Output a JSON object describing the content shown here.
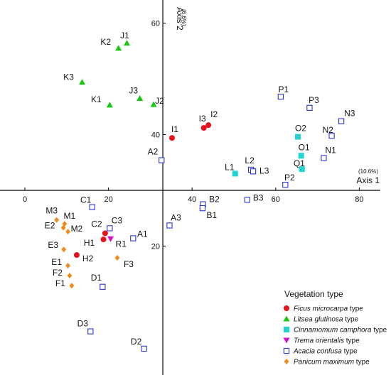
{
  "chart_data": {
    "type": "scatter",
    "title": "",
    "xlabel": "Axis 1",
    "xlabel_pct": "(10.6%)",
    "ylabel": "Axis 2",
    "ylabel_pct": "(6.6%)",
    "xlim": [
      -10,
      85
    ],
    "ylim": [
      -4,
      65
    ],
    "origin": [
      33,
      30
    ],
    "x_ticks": [
      {
        "label": "0",
        "value": 0
      },
      {
        "label": "20",
        "value": 20
      },
      {
        "label": "40",
        "value": 40
      },
      {
        "label": "60",
        "value": 60
      },
      {
        "label": "80",
        "value": 80
      }
    ],
    "y_ticks": [
      {
        "label": "60",
        "value": 60
      },
      {
        "label": "40",
        "value": 40
      },
      {
        "label": "20",
        "value": 20
      }
    ],
    "legend_position": "bottom-right",
    "legend_title": "Vegetation type",
    "series": [
      {
        "key": "ficus",
        "name_italic": "Ficus microcarpa",
        "name_suffix": " type",
        "color": "#e8101b",
        "marker": "circle",
        "points": [
          {
            "label": "I1",
            "x": 35.2,
            "y": 39.4
          },
          {
            "label": "I3",
            "x": 42.8,
            "y": 41.2
          },
          {
            "label": "I2",
            "x": 43.9,
            "y": 41.7
          },
          {
            "label": "C2",
            "x": 19.2,
            "y": 22.3
          },
          {
            "label": "H1",
            "x": 18.8,
            "y": 21.2
          },
          {
            "label": "H2",
            "x": 12.4,
            "y": 18.4
          }
        ]
      },
      {
        "key": "litsea",
        "name_italic": "Litsea glutinosa",
        "name_suffix": " type",
        "color": "#16c80f",
        "marker": "triangle",
        "points": [
          {
            "label": "K2",
            "x": 22.4,
            "y": 55.5
          },
          {
            "label": "J1",
            "x": 24.4,
            "y": 56.4
          },
          {
            "label": "K3",
            "x": 13.7,
            "y": 49.4
          },
          {
            "label": "J3",
            "x": 27.5,
            "y": 46.5
          },
          {
            "label": "J2",
            "x": 30.8,
            "y": 45.4
          },
          {
            "label": "K1",
            "x": 20.3,
            "y": 45.3
          }
        ]
      },
      {
        "key": "cinnamomum",
        "name_italic": "Cinnamomum  camphora",
        "name_suffix": " type",
        "color": "#1fd4d2",
        "marker": "square-filled",
        "points": [
          {
            "label": "O2",
            "x": 65.3,
            "y": 39.6
          },
          {
            "label": "O1",
            "x": 66.1,
            "y": 36.2
          },
          {
            "label": "Q1",
            "x": 66.3,
            "y": 33.8
          },
          {
            "label": "L1",
            "x": 50.3,
            "y": 33.0
          }
        ]
      },
      {
        "key": "trema",
        "name_italic": "Trema orientalis",
        "name_suffix": " type",
        "color": "#d010c8",
        "marker": "triangle-down",
        "points": [
          {
            "label": "R1",
            "x": 20.5,
            "y": 21.3
          }
        ]
      },
      {
        "key": "acacia",
        "name_italic": "Acacia confusa",
        "name_suffix": " type",
        "color": "#2a35d4",
        "marker": "square-open",
        "points": [
          {
            "label": "P1",
            "x": 61.2,
            "y": 46.8
          },
          {
            "label": "P3",
            "x": 68.1,
            "y": 44.8
          },
          {
            "label": "N3",
            "x": 75.7,
            "y": 42.4
          },
          {
            "label": "N2",
            "x": 73.4,
            "y": 39.8
          },
          {
            "label": "N1",
            "x": 71.5,
            "y": 35.8
          },
          {
            "label": "A2",
            "x": 32.7,
            "y": 35.4
          },
          {
            "label": "L2",
            "x": 54.1,
            "y": 33.7
          },
          {
            "label": "L3",
            "x": 54.6,
            "y": 33.4
          },
          {
            "label": "P2",
            "x": 62.3,
            "y": 31.0
          },
          {
            "label": "B3",
            "x": 53.2,
            "y": 28.3
          },
          {
            "label": "B2",
            "x": 42.6,
            "y": 27.5
          },
          {
            "label": "B1",
            "x": 42.5,
            "y": 26.8
          },
          {
            "label": "C1",
            "x": 16.1,
            "y": 27.0
          },
          {
            "label": "C3",
            "x": 20.3,
            "y": 23.2
          },
          {
            "label": "A3",
            "x": 34.6,
            "y": 23.7
          },
          {
            "label": "A1",
            "x": 25.9,
            "y": 21.4
          },
          {
            "label": "D1",
            "x": 18.6,
            "y": 12.7
          },
          {
            "label": "D3",
            "x": 15.7,
            "y": 4.7
          },
          {
            "label": "D2",
            "x": 28.5,
            "y": 1.6
          }
        ]
      },
      {
        "key": "panicum",
        "name_italic": "Panicum maximum",
        "name_suffix": " type",
        "color": "#f08a1a",
        "marker": "diamond",
        "points": [
          {
            "label": "M3",
            "x": 7.6,
            "y": 24.7
          },
          {
            "label": "M1",
            "x": 9.5,
            "y": 24.0
          },
          {
            "label": "E2",
            "x": 9.2,
            "y": 23.3
          },
          {
            "label": "M2",
            "x": 10.3,
            "y": 22.6
          },
          {
            "label": "E3",
            "x": 9.3,
            "y": 19.4
          },
          {
            "label": "F3",
            "x": 22.1,
            "y": 17.9
          },
          {
            "label": "E1",
            "x": 10.3,
            "y": 16.5
          },
          {
            "label": "F2",
            "x": 10.7,
            "y": 14.7
          },
          {
            "label": "F1",
            "x": 11.2,
            "y": 12.9
          }
        ]
      }
    ]
  }
}
